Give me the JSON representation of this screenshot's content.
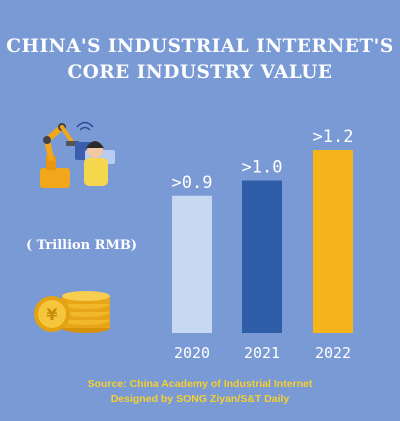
{
  "chart_data": {
    "type": "bar",
    "title_lines": [
      "CHINA'S INDUSTRIAL INTERNET'S",
      "CORE INDUSTRY VALUE"
    ],
    "unit": "( Trillion RMB)",
    "categories": [
      "2020",
      "2021",
      "2022"
    ],
    "values": [
      0.9,
      1.0,
      1.2
    ],
    "value_labels": [
      ">0.9",
      ">1.0",
      ">1.2"
    ],
    "colors": [
      "#C7D9F2",
      "#2F5DA8",
      "#F4B41A"
    ],
    "ylim": [
      0,
      1.2
    ],
    "source": "Source: China Academy of Industrial Internet",
    "credit": "Designed by SONG Ziyan/S&T Daily"
  }
}
